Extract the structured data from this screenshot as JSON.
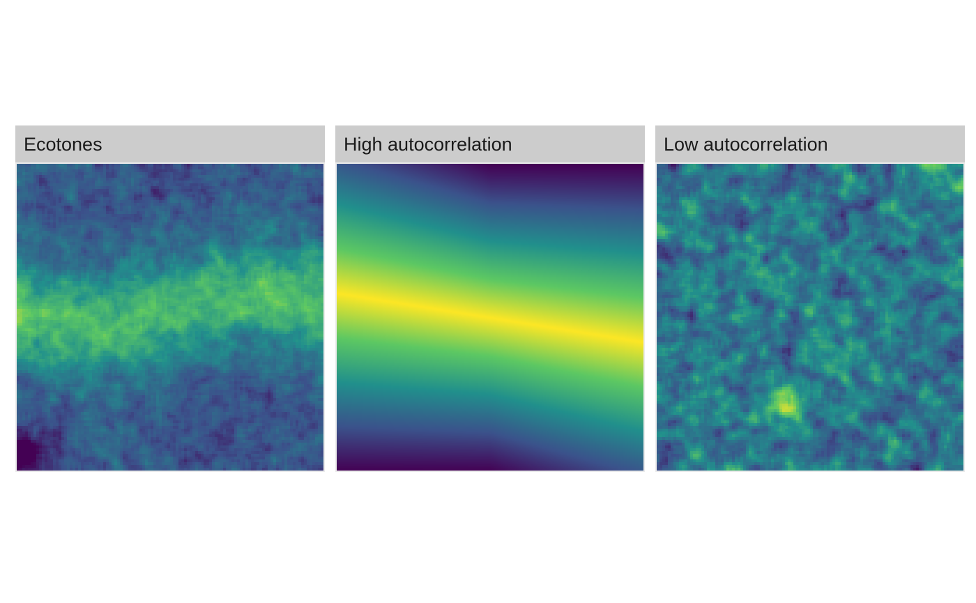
{
  "chart_data": [
    {
      "type": "heatmap",
      "title": "Ecotones",
      "pattern": "noisy band running horizontally across the middle, low values in lower-left corner",
      "colormap": "viridis"
    },
    {
      "type": "heatmap",
      "title": "High autocorrelation",
      "pattern": "smooth linear gradient, maximum along a slightly tilted line through the middle, minimum at top-right and bottom-left corners",
      "colormap": "viridis"
    },
    {
      "type": "heatmap",
      "title": "Low autocorrelation",
      "pattern": "patchy random field with small clusters of high and low values",
      "colormap": "viridis"
    }
  ],
  "colors": {
    "strip_background": "#cccccc",
    "panel_background": "#ebebeb",
    "viridis": [
      "#440154",
      "#3b528b",
      "#21908c",
      "#5dc863",
      "#fde725"
    ]
  }
}
